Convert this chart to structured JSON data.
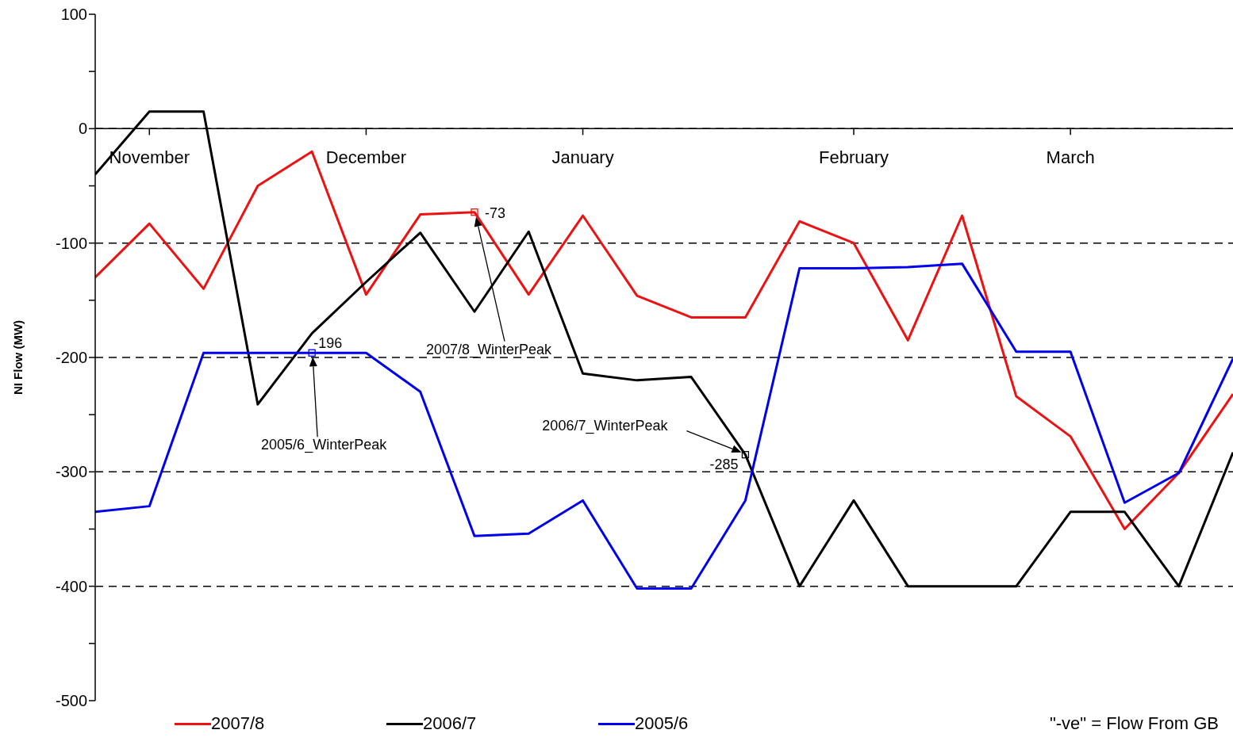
{
  "chart_data": {
    "type": "line",
    "ylabel": "NI Flow (MW)",
    "categories": [
      null,
      "November",
      null,
      null,
      null,
      "December",
      null,
      null,
      null,
      "January",
      null,
      null,
      null,
      null,
      "February",
      null,
      null,
      null,
      "March",
      null,
      null,
      null
    ],
    "ylim": [
      -500,
      100
    ],
    "yticks": [
      -500,
      {
        "value": -450,
        "label": null
      },
      -400,
      {
        "value": -350,
        "label": null
      },
      -300,
      {
        "value": -250,
        "label": null
      },
      -200,
      {
        "value": -150,
        "label": null
      },
      -100,
      {
        "value": -50,
        "label": null
      },
      0,
      {
        "value": 50,
        "label": null
      },
      100
    ],
    "grid": "y",
    "legend": "bottom",
    "series": [
      {
        "name": "2007/8",
        "color": "#ee1111",
        "values": [
          -130,
          -83,
          -140,
          -50,
          -20,
          -145,
          -75,
          -73,
          -145,
          -76,
          -146,
          -165,
          -165,
          -81,
          -100,
          -185,
          -76,
          -234,
          -269,
          -350,
          -301,
          -232
        ]
      },
      {
        "name": "2006/7",
        "color": "#000000",
        "values": [
          -40,
          15,
          15,
          -241,
          -179,
          -134,
          -91,
          -160,
          -90,
          -214,
          -220,
          -217,
          -285,
          -400,
          -325,
          -400,
          -400,
          -400,
          -335,
          -335,
          -400,
          -283
        ]
      },
      {
        "name": "2005/6",
        "color": "#0000ee",
        "values": [
          -335,
          -330,
          -196,
          -196,
          -196,
          -196,
          -230,
          -356,
          -354,
          -325,
          -402,
          -402,
          -325,
          -122,
          -122,
          -121,
          -118,
          -195,
          -195,
          -327,
          -301,
          -201
        ]
      }
    ],
    "annotations": [
      "-73",
      "2007/8_WinterPeak",
      "-196",
      "2005/6_WinterPeak",
      "-285",
      "2006/7_WinterPeak",
      "\"-ve\" = Flow From GB"
    ]
  }
}
